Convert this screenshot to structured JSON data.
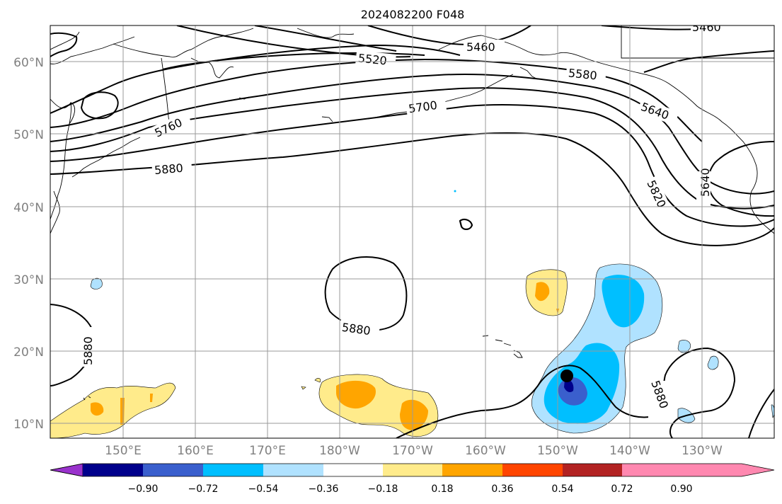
{
  "title": "2024082200 F048",
  "lat_ticks": [
    "60°N",
    "50°N",
    "40°N",
    "30°N",
    "20°N",
    "10°N"
  ],
  "lon_ticks": [
    "150°E",
    "160°E",
    "170°E",
    "180°W",
    "170°W",
    "160°W",
    "150°W",
    "140°W",
    "130°W"
  ],
  "contour_labels": [
    "5460",
    "5460",
    "5520",
    "5580",
    "5640",
    "5640",
    "5700",
    "5760",
    "5820",
    "5880",
    "5880",
    "5880",
    "5880"
  ],
  "colorbar": {
    "colors": [
      "#9932cc",
      "#00008b",
      "#3a5fcd",
      "#00bfff",
      "#b0e2ff",
      "#ffffff",
      "#ffeb8b",
      "#ffa500",
      "#ff4500",
      "#b22222",
      "#ff88b0"
    ],
    "ticks": [
      "−0.90",
      "−0.72",
      "−0.54",
      "−0.36",
      "−0.18",
      "0.18",
      "0.36",
      "0.54",
      "0.72",
      "0.90"
    ]
  },
  "marker": {
    "name": "storm-center",
    "color": "#000000"
  }
}
